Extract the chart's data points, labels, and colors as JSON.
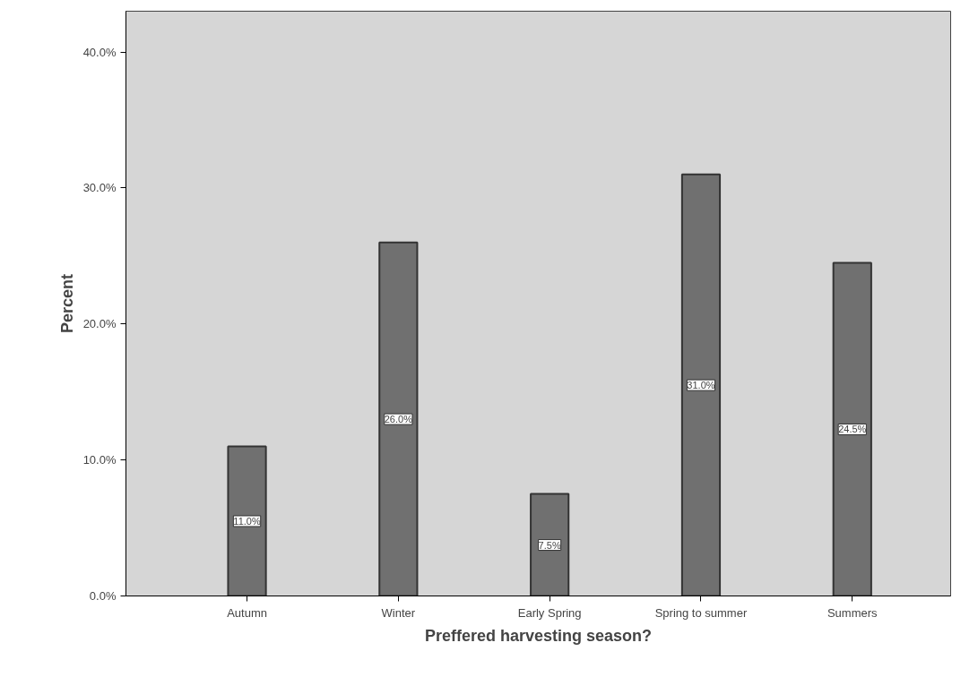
{
  "chart_data": {
    "type": "bar",
    "xlabel": "Preffered harvesting season?",
    "ylabel": "Percent",
    "categories": [
      "Autumn",
      "Winter",
      "Early Spring",
      "Spring to summer",
      "Summers"
    ],
    "values": [
      11.0,
      26.0,
      7.5,
      31.0,
      24.5
    ],
    "value_labels": [
      "11.0%",
      "26.0%",
      "7.5%",
      "31.0%",
      "24.5%"
    ],
    "color": "#707070",
    "ylim": [
      0,
      43
    ],
    "yticks": [
      {
        "value": 0,
        "label": "0.0%"
      },
      {
        "value": 10,
        "label": "10.0%"
      },
      {
        "value": 20,
        "label": "20.0%"
      },
      {
        "value": 30,
        "label": "30.0%"
      },
      {
        "value": 40,
        "label": "40.0%"
      }
    ],
    "grid": false
  }
}
